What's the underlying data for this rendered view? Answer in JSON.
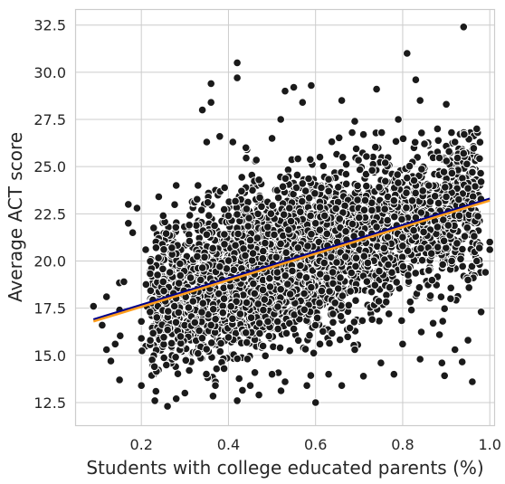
{
  "chart_data": {
    "type": "scatter",
    "title": "",
    "xlabel": "Students with college educated parents (%)",
    "ylabel": "Average ACT score",
    "xlim": [
      0.05,
      1.01
    ],
    "ylim": [
      11.3,
      33.3
    ],
    "x_ticks": [
      0.2,
      0.4,
      0.6,
      0.8,
      1.0
    ],
    "x_tick_labels": [
      "0.2",
      "0.4",
      "0.6",
      "0.8",
      "1.0"
    ],
    "y_ticks": [
      12.5,
      15.0,
      17.5,
      20.0,
      22.5,
      25.0,
      27.5,
      30.0,
      32.5
    ],
    "y_tick_labels": [
      "12.5",
      "15.0",
      "17.5",
      "20.0",
      "22.5",
      "25.0",
      "27.5",
      "30.0",
      "32.5"
    ],
    "grid": true,
    "point_color": "#1a1a1a",
    "point_edge_color": "#ffffff",
    "series": [
      {
        "type": "line",
        "color": "#00008b",
        "x": [
          0.09,
          1.0
        ],
        "y": [
          16.9,
          23.3
        ]
      },
      {
        "type": "line",
        "color": "#ff9d1c",
        "x": [
          0.09,
          1.0
        ],
        "y": [
          16.8,
          23.2
        ]
      }
    ],
    "points": [
      [
        0.09,
        17.6
      ],
      [
        0.12,
        18.1
      ],
      [
        0.11,
        16.6
      ],
      [
        0.12,
        15.3
      ],
      [
        0.13,
        14.7
      ],
      [
        0.14,
        15.6
      ],
      [
        0.15,
        13.7
      ],
      [
        0.15,
        17.4
      ],
      [
        0.16,
        18.9
      ],
      [
        0.17,
        23.0
      ],
      [
        0.17,
        22.0
      ],
      [
        0.18,
        21.5
      ],
      [
        0.19,
        22.8
      ],
      [
        0.2,
        13.4
      ],
      [
        0.2,
        15.9
      ],
      [
        0.2,
        16.8
      ],
      [
        0.21,
        20.6
      ],
      [
        0.22,
        17.3
      ],
      [
        0.23,
        14.4
      ],
      [
        0.24,
        23.4
      ],
      [
        0.25,
        22.4
      ],
      [
        0.25,
        18.9
      ],
      [
        0.26,
        12.3
      ],
      [
        0.27,
        20.7
      ],
      [
        0.28,
        24.0
      ],
      [
        0.28,
        12.7
      ],
      [
        0.29,
        16.0
      ],
      [
        0.3,
        13.0
      ],
      [
        0.31,
        21.9
      ],
      [
        0.31,
        14.2
      ],
      [
        0.32,
        18.4
      ],
      [
        0.33,
        24.0
      ],
      [
        0.33,
        15.1
      ],
      [
        0.34,
        28.0
      ],
      [
        0.35,
        21.4
      ],
      [
        0.35,
        26.3
      ],
      [
        0.36,
        29.4
      ],
      [
        0.36,
        28.4
      ],
      [
        0.36,
        16.6
      ],
      [
        0.37,
        13.4
      ],
      [
        0.38,
        26.6
      ],
      [
        0.38,
        19.7
      ],
      [
        0.39,
        18.0
      ],
      [
        0.39,
        14.3
      ],
      [
        0.4,
        22.4
      ],
      [
        0.41,
        26.3
      ],
      [
        0.42,
        30.5
      ],
      [
        0.42,
        29.7
      ],
      [
        0.42,
        12.6
      ],
      [
        0.43,
        23.7
      ],
      [
        0.44,
        26.0
      ],
      [
        0.44,
        16.2
      ],
      [
        0.45,
        21.1
      ],
      [
        0.45,
        13.4
      ],
      [
        0.46,
        19.3
      ],
      [
        0.47,
        24.3
      ],
      [
        0.47,
        12.9
      ],
      [
        0.48,
        17.4
      ],
      [
        0.49,
        21.8
      ],
      [
        0.5,
        26.5
      ],
      [
        0.5,
        14.0
      ],
      [
        0.51,
        20.2
      ],
      [
        0.52,
        27.5
      ],
      [
        0.52,
        18.5
      ],
      [
        0.53,
        29.0
      ],
      [
        0.53,
        13.6
      ],
      [
        0.54,
        22.8
      ],
      [
        0.55,
        29.2
      ],
      [
        0.55,
        16.4
      ],
      [
        0.56,
        20.7
      ],
      [
        0.57,
        28.4
      ],
      [
        0.57,
        24.1
      ],
      [
        0.58,
        13.4
      ],
      [
        0.59,
        29.3
      ],
      [
        0.59,
        18.6
      ],
      [
        0.6,
        22.0
      ],
      [
        0.6,
        12.5
      ],
      [
        0.61,
        25.5
      ],
      [
        0.61,
        15.6
      ],
      [
        0.62,
        19.9
      ],
      [
        0.63,
        23.7
      ],
      [
        0.63,
        14.0
      ],
      [
        0.64,
        17.2
      ],
      [
        0.65,
        21.0
      ],
      [
        0.66,
        28.5
      ],
      [
        0.66,
        13.4
      ],
      [
        0.67,
        24.6
      ],
      [
        0.68,
        18.4
      ],
      [
        0.69,
        27.4
      ],
      [
        0.69,
        15.3
      ],
      [
        0.7,
        22.3
      ],
      [
        0.71,
        26.7
      ],
      [
        0.71,
        13.9
      ],
      [
        0.72,
        19.9
      ],
      [
        0.73,
        24.8
      ],
      [
        0.73,
        16.9
      ],
      [
        0.74,
        29.1
      ],
      [
        0.74,
        21.8
      ],
      [
        0.75,
        14.6
      ],
      [
        0.76,
        25.2
      ],
      [
        0.77,
        18.6
      ],
      [
        0.78,
        23.2
      ],
      [
        0.78,
        14.0
      ],
      [
        0.79,
        27.5
      ],
      [
        0.8,
        20.8
      ],
      [
        0.8,
        15.6
      ],
      [
        0.81,
        31.0
      ],
      [
        0.81,
        24.4
      ],
      [
        0.82,
        17.4
      ],
      [
        0.83,
        29.6
      ],
      [
        0.83,
        22.3
      ],
      [
        0.84,
        28.5
      ],
      [
        0.84,
        14.8
      ],
      [
        0.85,
        26.2
      ],
      [
        0.86,
        19.5
      ],
      [
        0.86,
        24.0
      ],
      [
        0.87,
        16.7
      ],
      [
        0.88,
        27.0
      ],
      [
        0.88,
        21.8
      ],
      [
        0.89,
        14.6
      ],
      [
        0.9,
        28.3
      ],
      [
        0.9,
        23.4
      ],
      [
        0.91,
        18.0
      ],
      [
        0.92,
        26.3
      ],
      [
        0.92,
        15.3
      ],
      [
        0.93,
        22.4
      ],
      [
        0.94,
        32.4
      ],
      [
        0.94,
        25.7
      ],
      [
        0.95,
        19.0
      ],
      [
        0.95,
        15.8
      ],
      [
        0.96,
        24.7
      ],
      [
        0.96,
        13.6
      ],
      [
        0.97,
        27.0
      ],
      [
        0.97,
        20.0
      ],
      [
        0.98,
        24.2
      ],
      [
        0.98,
        17.3
      ],
      [
        0.99,
        19.4
      ],
      [
        1.0,
        21.0
      ],
      [
        1.0,
        20.6
      ]
    ]
  }
}
